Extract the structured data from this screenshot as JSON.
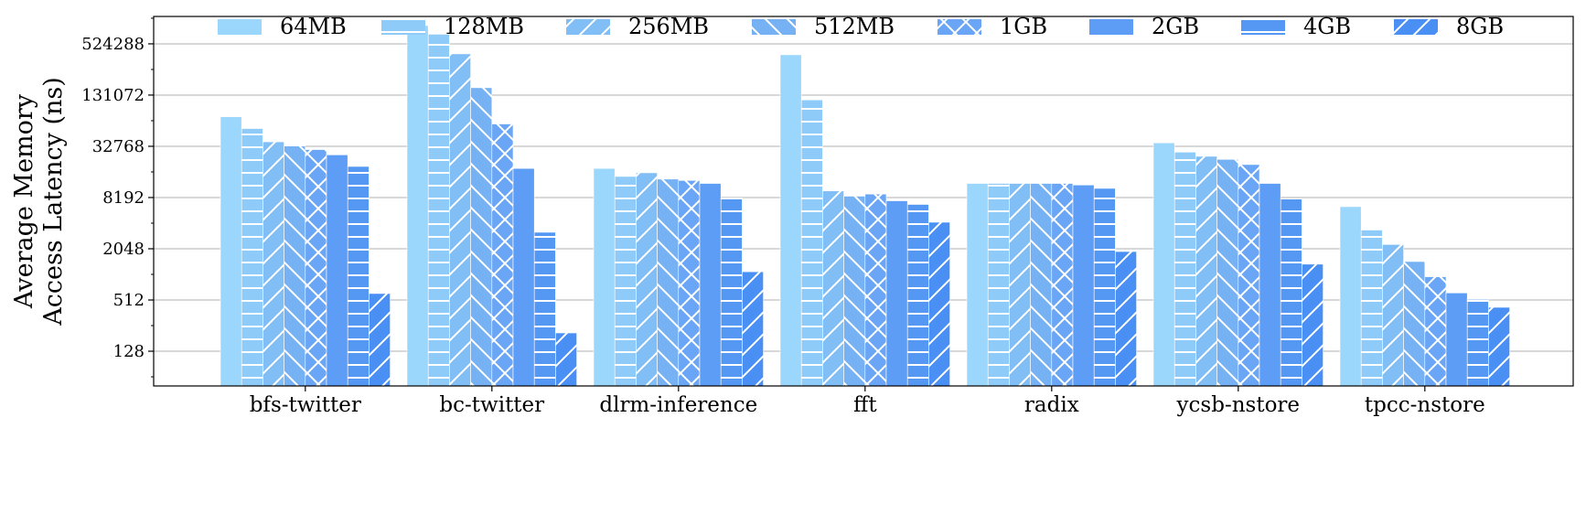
{
  "chart_data": {
    "type": "bar",
    "ylabel_lines": [
      "Average Memory",
      "Access Latency (ns)"
    ],
    "yscale": "log2",
    "ylim": [
      50,
      1100000
    ],
    "yticks": [
      128,
      512,
      2048,
      8192,
      32768,
      131072,
      524288
    ],
    "grid": "horizontal",
    "legend_placement": "top",
    "categories": [
      "bfs-twitter",
      "bc-twitter",
      "dlrm-inference",
      "fft",
      "radix",
      "ycsb-nstore",
      "tpcc-nstore"
    ],
    "series": [
      {
        "name": "64MB",
        "color": "#9bd6fc",
        "hatch": "none",
        "values": [
          73000,
          860000,
          18000,
          390000,
          12000,
          36000,
          6400
        ]
      },
      {
        "name": "128MB",
        "color": "#8fcbf8",
        "hatch": "hlines",
        "values": [
          53000,
          680000,
          14500,
          115000,
          12000,
          28000,
          3400
        ]
      },
      {
        "name": "256MB",
        "color": "#82bef6",
        "hatch": "diag",
        "values": [
          37000,
          400000,
          16000,
          9800,
          12000,
          25000,
          2300
        ]
      },
      {
        "name": "512MB",
        "color": "#76b1f4",
        "hatch": "backdiag",
        "values": [
          33000,
          160000,
          13500,
          8500,
          12000,
          23000,
          1450
        ]
      },
      {
        "name": "1GB",
        "color": "#6aa6f5",
        "hatch": "cross",
        "values": [
          30000,
          60000,
          13000,
          9000,
          12000,
          20000,
          960
        ]
      },
      {
        "name": "2GB",
        "color": "#5e9df5",
        "hatch": "none",
        "values": [
          26000,
          18000,
          12000,
          7500,
          11500,
          12000,
          620
        ]
      },
      {
        "name": "4GB",
        "color": "#5598f4",
        "hatch": "hlines",
        "values": [
          19000,
          3200,
          8100,
          6800,
          10500,
          8000,
          520
        ]
      },
      {
        "name": "8GB",
        "color": "#4a8ff3",
        "hatch": "diag",
        "values": [
          610,
          210,
          1100,
          4200,
          1900,
          1350,
          420
        ]
      }
    ]
  }
}
